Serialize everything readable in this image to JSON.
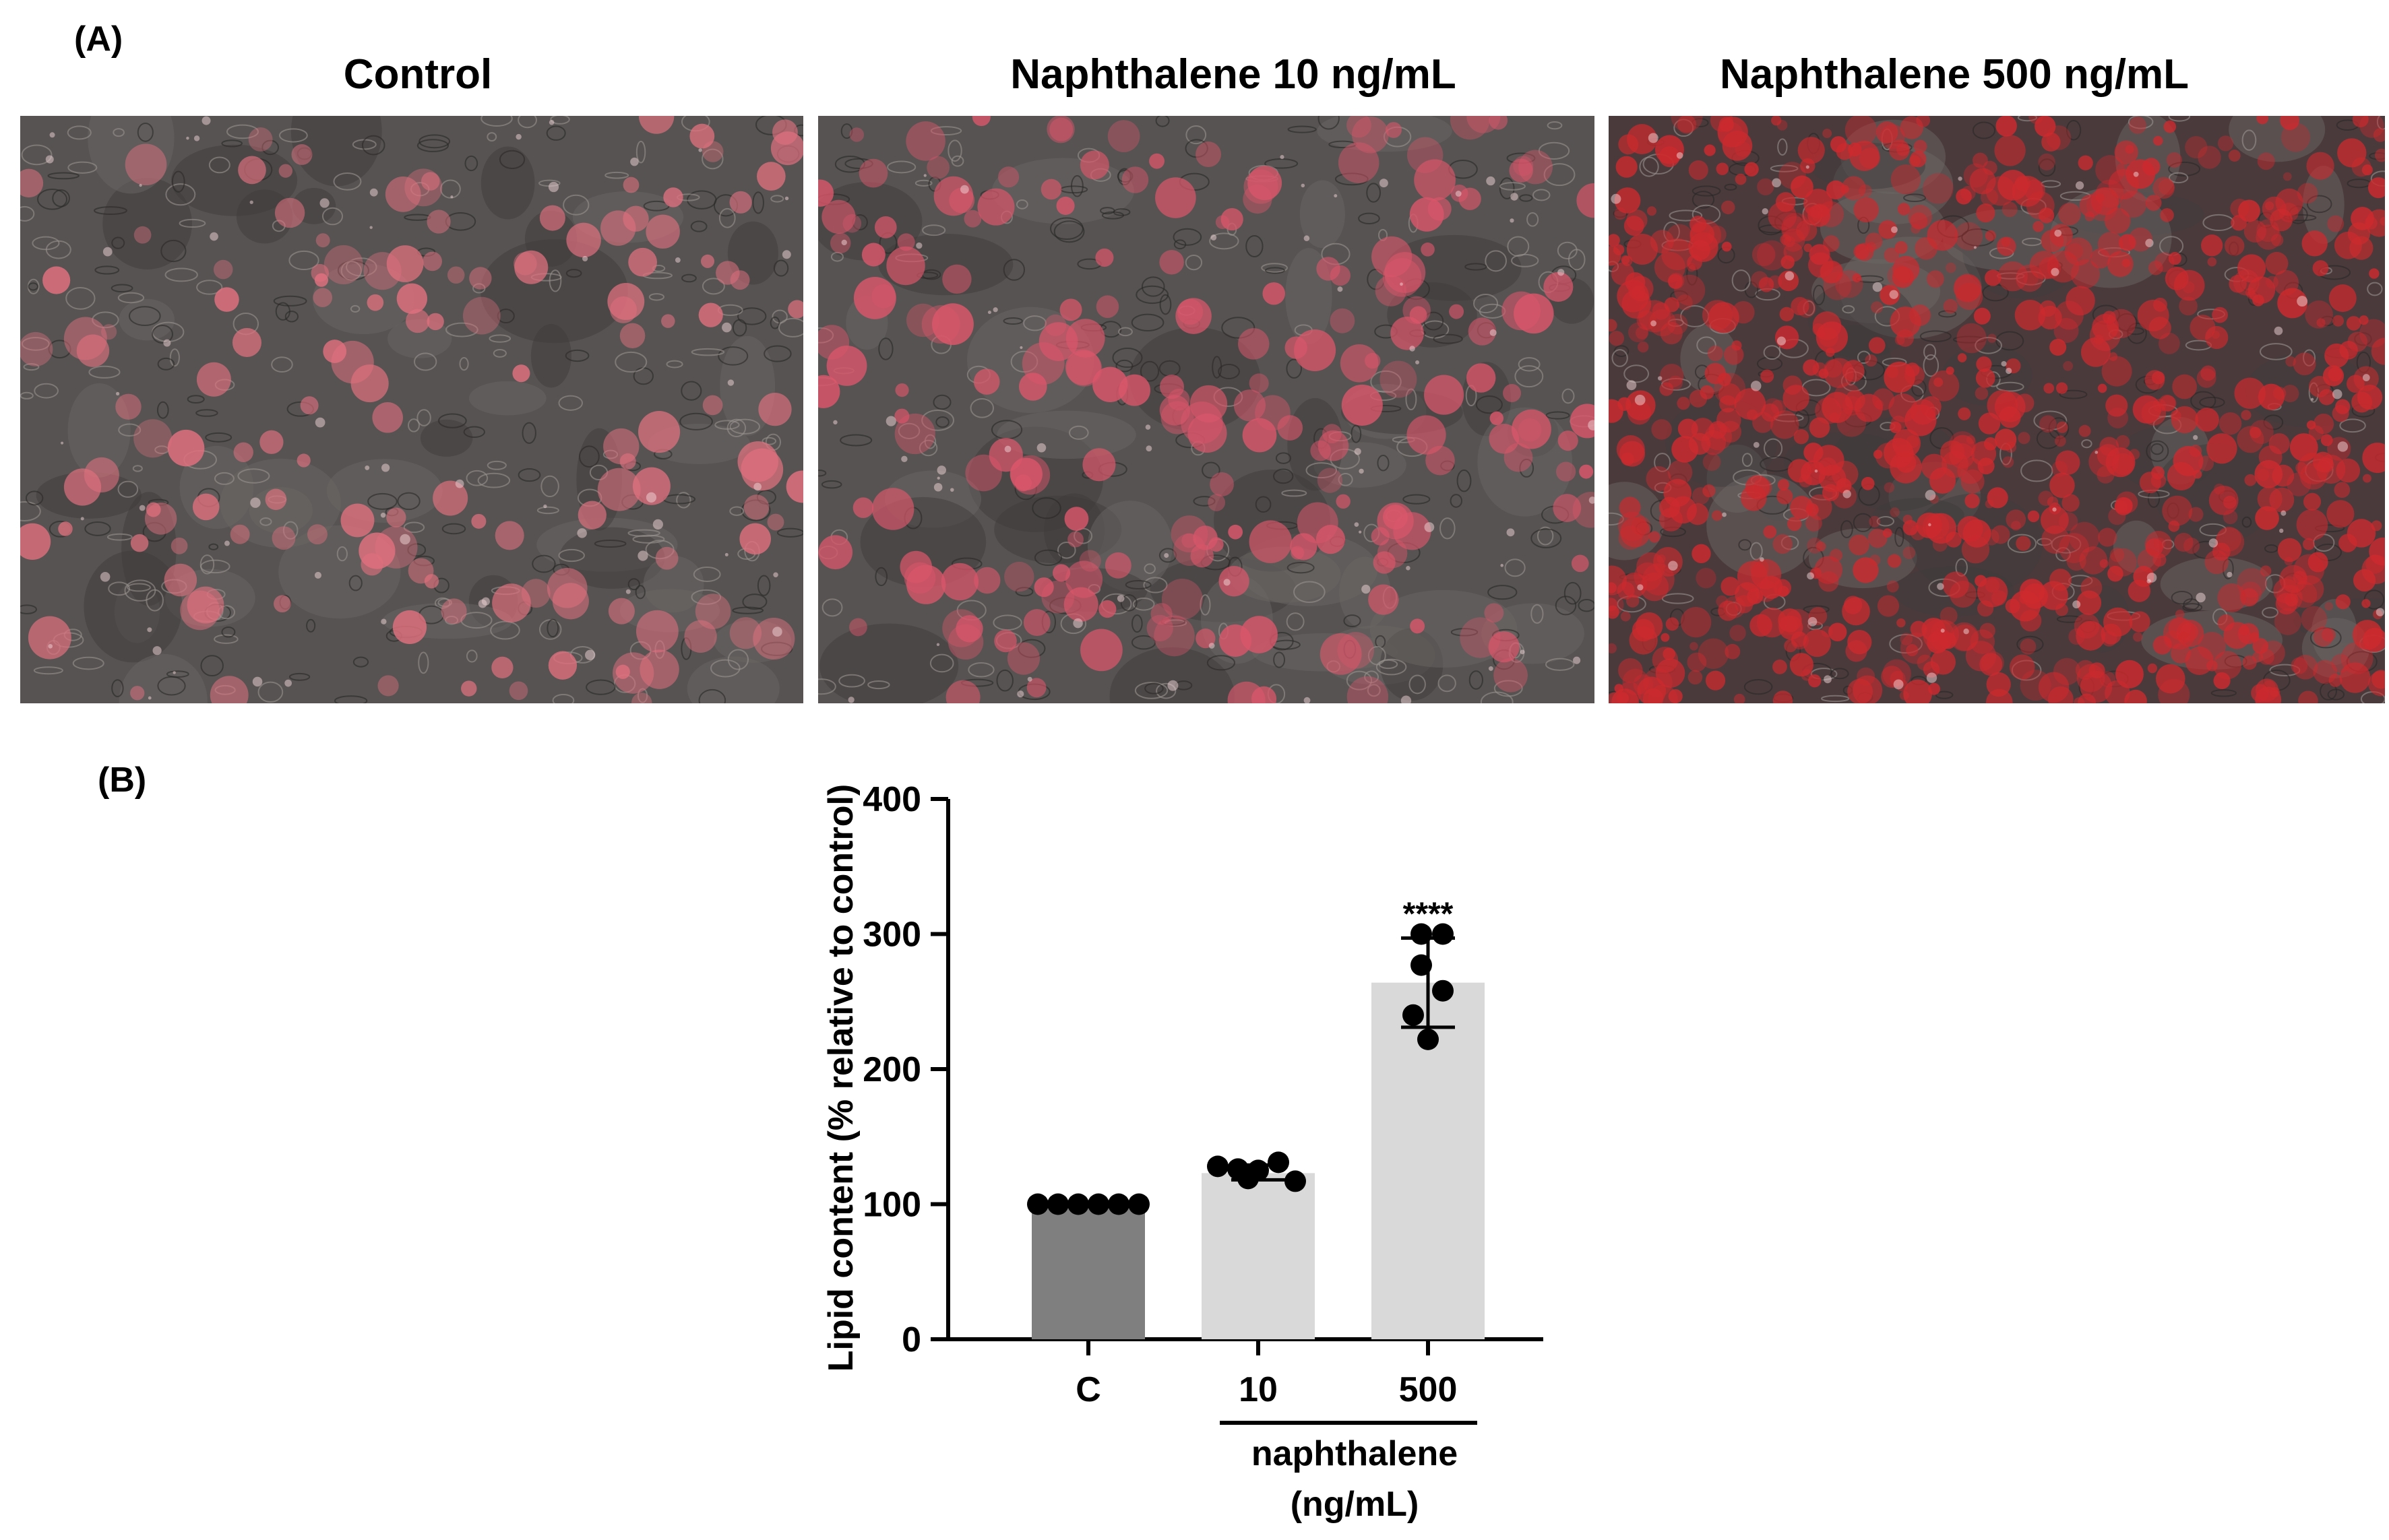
{
  "panel_a": {
    "label": "(A)",
    "images": [
      {
        "title": "Control",
        "stain_density": "low",
        "dominant_color": "#e0707e"
      },
      {
        "title": "Naphthalene 10 ng/mL",
        "stain_density": "medium",
        "dominant_color": "#d9566a"
      },
      {
        "title": "Naphthalene 500 ng/mL",
        "stain_density": "high",
        "dominant_color": "#cc2a2e"
      }
    ]
  },
  "panel_b": {
    "label": "(B)"
  },
  "chart_data": {
    "type": "bar",
    "categories": [
      "C",
      "10",
      "500"
    ],
    "values": [
      100,
      123,
      264
    ],
    "error_low": [
      100,
      118,
      231
    ],
    "error_high": [
      100,
      129,
      297
    ],
    "points": [
      [
        100,
        100,
        100,
        100,
        100,
        100
      ],
      [
        128,
        126,
        125,
        131,
        119,
        117
      ],
      [
        300,
        300,
        277,
        258,
        240,
        222
      ]
    ],
    "bar_colors": [
      "#7f7f7f",
      "#d9d9d9",
      "#d9d9d9"
    ],
    "annotations": [
      {
        "category": "500",
        "text": "****"
      }
    ],
    "ylabel": "Lipid content (% relative to control)",
    "ylim": [
      0,
      400
    ],
    "yticks": [
      "0",
      "100",
      "200",
      "300",
      "400"
    ],
    "group_label_line1": "naphthalene",
    "group_label_line2": "(ng/mL)",
    "grid": false,
    "legend": "none"
  }
}
